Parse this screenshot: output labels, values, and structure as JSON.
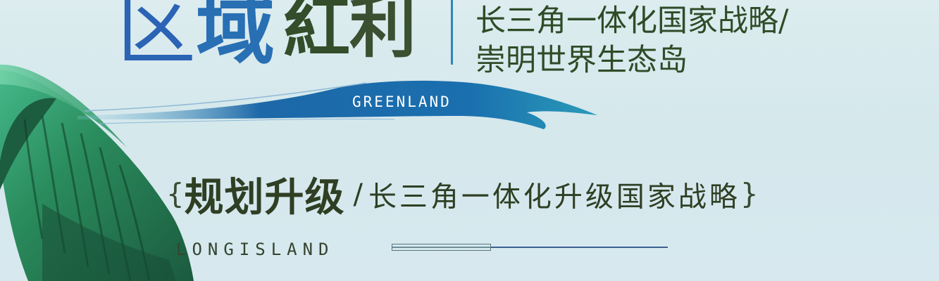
{
  "title": {
    "chars": [
      "区",
      "域",
      "紅",
      "利"
    ]
  },
  "subtitle": {
    "line1": "长三角一体化国家战略/",
    "line2": "崇明世界生态岛"
  },
  "wave_label": "GREENLAND",
  "headline": {
    "open_brace": "{",
    "strong": "规划升级",
    "separator": "/",
    "rest": "长三角一体化升级国家战略",
    "close_brace": "}"
  },
  "footer_label": "LONGISLAND",
  "colors": {
    "title_blue": "#2b63b5",
    "title_green": "#344d2a",
    "text_dark": "#2e4b27",
    "leaf_dark": "#1f5a3f",
    "leaf_mid": "#2b7d56",
    "leaf_light": "#3fae7c",
    "wave_blue": "#1d68a8"
  },
  "icons": {
    "leaf": "banana-leaf-icon",
    "wave": "wave-swoosh-icon"
  }
}
